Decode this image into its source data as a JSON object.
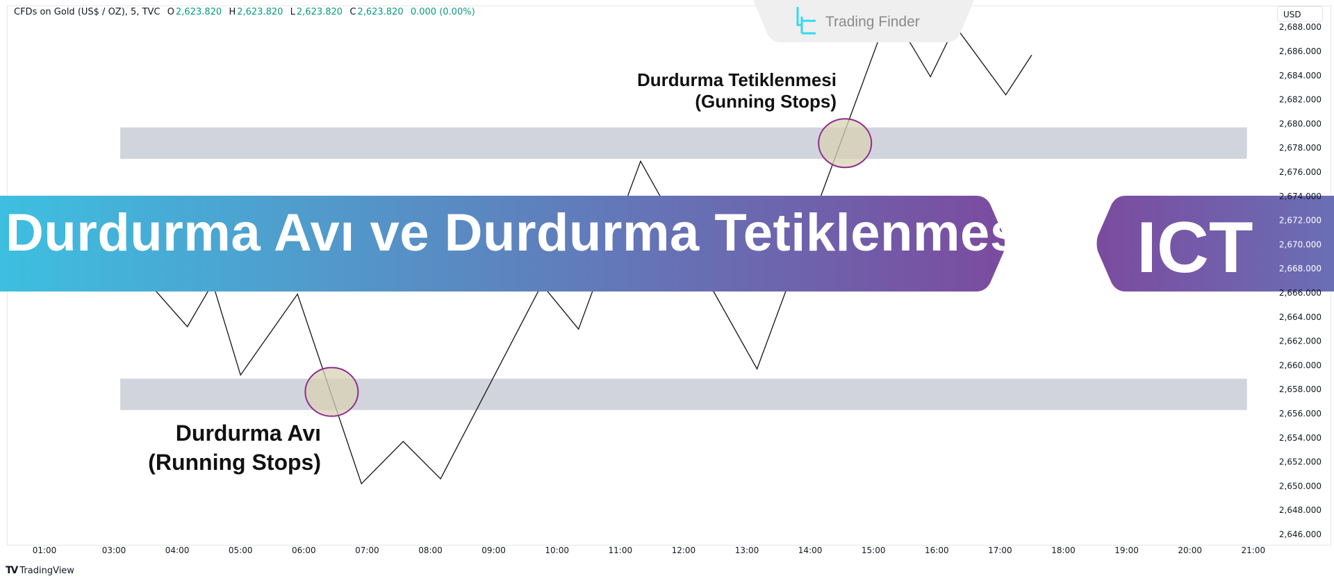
{
  "header": {
    "symbol": "CFDs on Gold (US$ / OZ), 5, TVC",
    "open_label": "O",
    "open": "2,623.820",
    "high_label": "H",
    "high": "2,623.820",
    "low_label": "L",
    "low": "2,623.820",
    "close_label": "C",
    "close": "2,623.820",
    "change": "0.000 (0.00%)"
  },
  "currency": "USD",
  "watermark": {
    "brand": "Trading Finder"
  },
  "banner": {
    "title": "Durdurma Avı ve Durdurma Tetiklenmesi",
    "tag": "ICT"
  },
  "annotations": {
    "upper_line1": "Durdurma Tetiklenmesi",
    "upper_line2": "(Gunning Stops)",
    "lower_line1": "Durdurma Avı",
    "lower_line2": "(Running Stops)"
  },
  "footer": {
    "brand": "TradingView"
  },
  "colors": {
    "line": "#111111",
    "zone": "#d1d4dc",
    "circle_stroke": "#8e2a8e",
    "circle_fill": "#d8d2b4",
    "banner_start": "#3dbfe0",
    "banner_end": "#7b4b9f",
    "value_green": "#089981"
  },
  "chart_data": {
    "type": "line",
    "x_unit": "hour",
    "x_tick_labels": [
      "01:00",
      "03:00",
      "04:00",
      "05:00",
      "06:00",
      "07:00",
      "08:00",
      "09:00",
      "10:00",
      "11:00",
      "12:00",
      "13:00",
      "14:00",
      "15:00",
      "16:00",
      "17:00",
      "18:00",
      "19:00",
      "20:00",
      "21:00"
    ],
    "y_tick_labels": [
      "2,646.000",
      "2,648.000",
      "2,650.000",
      "2,652.000",
      "2,654.000",
      "2,656.000",
      "2,658.000",
      "2,660.000",
      "2,662.000",
      "2,664.000",
      "2,666.000",
      "2,668.000",
      "2,670.000",
      "2,672.000",
      "2,674.000",
      "2,676.000",
      "2,678.000",
      "2,680.000",
      "2,682.000",
      "2,684.000",
      "2,686.000",
      "2,688.000"
    ],
    "ylim": [
      2645,
      2689
    ],
    "grid": false,
    "series": [
      {
        "x": [
          3.3,
          4.16,
          4.56,
          5.0,
          5.9,
          6.91,
          7.57,
          8.16,
          9.76,
          10.34,
          11.32,
          13.16,
          15.26,
          15.9,
          16.29,
          17.09,
          17.5
        ],
        "y": [
          2668.3,
          2663.2,
          2666.8,
          2659.2,
          2665.9,
          2650.2,
          2653.7,
          2650.6,
          2666.7,
          2663.0,
          2676.9,
          2659.7,
          2689.5,
          2683.9,
          2688.1,
          2682.4,
          2685.7
        ]
      }
    ],
    "zones": [
      {
        "x_start": 3.1,
        "x_end": 20.9,
        "y_low": 2677.1,
        "y_high": 2679.7
      },
      {
        "x_start": 3.1,
        "x_end": 20.9,
        "y_low": 2656.3,
        "y_high": 2658.9
      }
    ],
    "highlights": [
      {
        "x": 14.55,
        "y": 2678.4
      },
      {
        "x": 6.44,
        "y": 2657.8
      }
    ]
  }
}
